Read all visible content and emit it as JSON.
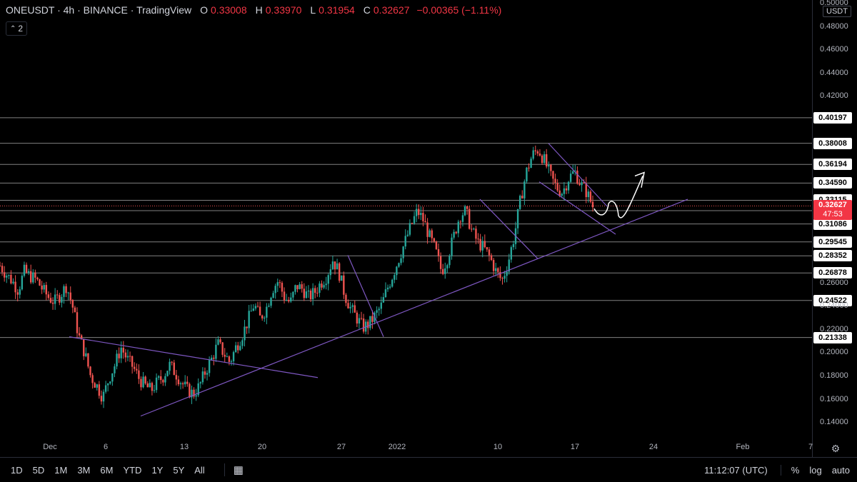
{
  "header": {
    "symbol": "ONEUSDT · 4h · BINANCE · TradingView",
    "o_label": "O",
    "o_value": "0.33008",
    "h_label": "H",
    "h_value": "0.33970",
    "l_label": "L",
    "l_value": "0.31954",
    "c_label": "C",
    "c_value": "0.32627",
    "change": "−0.00365 (−1.11%)",
    "collapse_count": "2"
  },
  "currency": "USDT",
  "current_price": "0.32627",
  "countdown": "47:53",
  "range_buttons": [
    "1D",
    "5D",
    "1M",
    "3M",
    "6M",
    "YTD",
    "1Y",
    "5Y",
    "All"
  ],
  "clock": "11:12:07 (UTC)",
  "scale_buttons": {
    "percent": "%",
    "log": "log",
    "auto": "auto"
  },
  "colors": {
    "up": "#26a69a",
    "down": "#ef5350",
    "trendline": "#7e57c2",
    "level": "#ffffff"
  },
  "chart_data": {
    "type": "candlestick",
    "yaxis_ticks": [
      "0.50000",
      "0.48000",
      "0.46000",
      "0.44000",
      "0.42000",
      "0.26000",
      "0.24000",
      "0.22000",
      "0.20000",
      "0.18000",
      "0.16000",
      "0.14000"
    ],
    "xaxis_ticks": [
      "Dec",
      "6",
      "13",
      "20",
      "27",
      "2022",
      "10",
      "17",
      "24",
      "Feb",
      "7"
    ],
    "horizontal_levels": [
      "0.40197",
      "0.38008",
      "0.36194",
      "0.34590",
      "0.33115",
      "0.32222",
      "0.31086",
      "0.29545",
      "0.28352",
      "0.26878",
      "0.24522",
      "0.21338"
    ],
    "ylim": [
      0.128,
      0.503
    ],
    "price_path": [
      0.275,
      0.268,
      0.262,
      0.254,
      0.27,
      0.266,
      0.263,
      0.255,
      0.248,
      0.244,
      0.25,
      0.258,
      0.24,
      0.215,
      0.2,
      0.18,
      0.172,
      0.162,
      0.178,
      0.19,
      0.205,
      0.195,
      0.188,
      0.178,
      0.172,
      0.168,
      0.175,
      0.18,
      0.19,
      0.183,
      0.175,
      0.168,
      0.165,
      0.172,
      0.185,
      0.195,
      0.208,
      0.2,
      0.192,
      0.205,
      0.215,
      0.228,
      0.242,
      0.23,
      0.238,
      0.255,
      0.262,
      0.248,
      0.243,
      0.258,
      0.255,
      0.248,
      0.252,
      0.26,
      0.266,
      0.28,
      0.27,
      0.25,
      0.238,
      0.23,
      0.222,
      0.225,
      0.232,
      0.24,
      0.255,
      0.268,
      0.282,
      0.296,
      0.31,
      0.322,
      0.314,
      0.3,
      0.288,
      0.27,
      0.282,
      0.3,
      0.318,
      0.322,
      0.305,
      0.295,
      0.29,
      0.282,
      0.27,
      0.262,
      0.278,
      0.3,
      0.33,
      0.355,
      0.37,
      0.375,
      0.365,
      0.352,
      0.342,
      0.338,
      0.35,
      0.356,
      0.345,
      0.338,
      0.326
    ]
  }
}
